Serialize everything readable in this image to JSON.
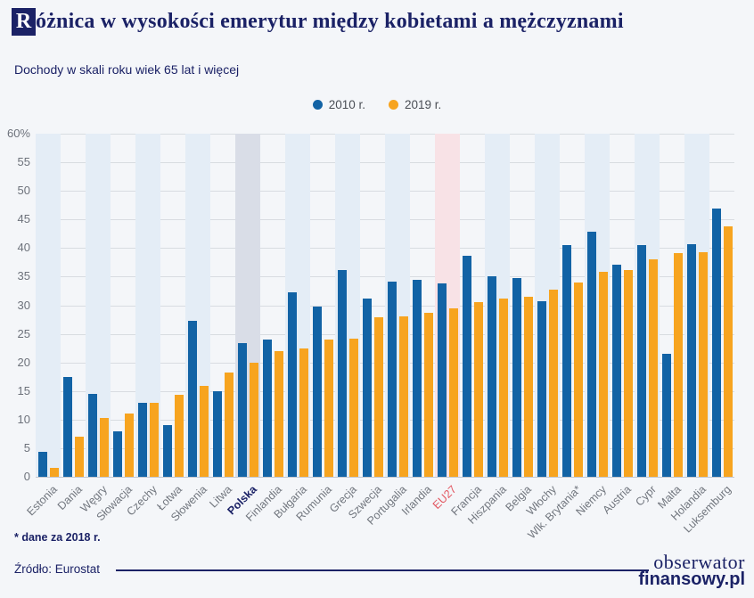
{
  "page": {
    "title_initial": "R",
    "title_rest": "óżnica w wysokości emerytur między kobietami a mężczyznami",
    "subtitle": "Dochody w skali roku wiek 65 lat i więcej",
    "footnote": "* dane za 2018 r.",
    "source": "Źródło: Eurostat",
    "logo_line1": "obserwator",
    "logo_line2": "finansowy.pl"
  },
  "colors": {
    "navy": "#1b2266",
    "bar_2010": "#1263a5",
    "bar_2019": "#f7a41f",
    "band_blue": "#e4edf6",
    "band_grey": "#d9dde7",
    "band_pink": "#f8e2e6",
    "eu27_label": "#e2555f",
    "gridline": "#d8dce1",
    "axis_text": "#6d727b",
    "background": "#f4f6f9"
  },
  "chart_data": {
    "type": "bar",
    "title": "Różnica w wysokości emerytur między kobietami a mężczyznami",
    "subtitle": "Dochody w skali roku wiek 65 lat i więcej",
    "xlabel": "",
    "ylabel": "",
    "ylim": [
      0,
      60
    ],
    "grid": true,
    "legend_position": "top-center",
    "yticks": [
      {
        "value": 60,
        "label": "60%"
      },
      {
        "value": 55,
        "label": "55"
      },
      {
        "value": 50,
        "label": "50"
      },
      {
        "value": 45,
        "label": "45"
      },
      {
        "value": 40,
        "label": "40"
      },
      {
        "value": 35,
        "label": "35"
      },
      {
        "value": 30,
        "label": "30"
      },
      {
        "value": 25,
        "label": "25"
      },
      {
        "value": 20,
        "label": "20"
      },
      {
        "value": 15,
        "label": "15"
      },
      {
        "value": 10,
        "label": "10"
      },
      {
        "value": 5,
        "label": "5"
      },
      {
        "value": 0,
        "label": "0"
      }
    ],
    "categories": [
      {
        "label": "Estonia",
        "band": "blue",
        "label_style": "default"
      },
      {
        "label": "Dania",
        "band": "none",
        "label_style": "default"
      },
      {
        "label": "Węgry",
        "band": "blue",
        "label_style": "default"
      },
      {
        "label": "Słowacja",
        "band": "none",
        "label_style": "default"
      },
      {
        "label": "Czechy",
        "band": "blue",
        "label_style": "default"
      },
      {
        "label": "Łotwa",
        "band": "none",
        "label_style": "default"
      },
      {
        "label": "Słowenia",
        "band": "blue",
        "label_style": "default"
      },
      {
        "label": "Litwa",
        "band": "none",
        "label_style": "default"
      },
      {
        "label": "Polska",
        "band": "grey",
        "label_style": "polska"
      },
      {
        "label": "Finlandia",
        "band": "none",
        "label_style": "default"
      },
      {
        "label": "Bułgaria",
        "band": "blue",
        "label_style": "default"
      },
      {
        "label": "Rumunia",
        "band": "none",
        "label_style": "default"
      },
      {
        "label": "Grecja",
        "band": "blue",
        "label_style": "default"
      },
      {
        "label": "Szwecja",
        "band": "none",
        "label_style": "default"
      },
      {
        "label": "Portugalia",
        "band": "blue",
        "label_style": "default"
      },
      {
        "label": "Irlandia",
        "band": "none",
        "label_style": "default"
      },
      {
        "label": "EU27",
        "band": "pink",
        "label_style": "eu27"
      },
      {
        "label": "Francja",
        "band": "none",
        "label_style": "default"
      },
      {
        "label": "Hiszpania",
        "band": "blue",
        "label_style": "default"
      },
      {
        "label": "Belgia",
        "band": "none",
        "label_style": "default"
      },
      {
        "label": "Włochy",
        "band": "blue",
        "label_style": "default"
      },
      {
        "label": "Wlk. Brytania*",
        "band": "none",
        "label_style": "default"
      },
      {
        "label": "Niemcy",
        "band": "blue",
        "label_style": "default"
      },
      {
        "label": "Austria",
        "band": "none",
        "label_style": "default"
      },
      {
        "label": "Cypr",
        "band": "blue",
        "label_style": "default"
      },
      {
        "label": "Malta",
        "band": "none",
        "label_style": "default"
      },
      {
        "label": "Holandia",
        "band": "blue",
        "label_style": "default"
      },
      {
        "label": "Luksemburg",
        "band": "none",
        "label_style": "default"
      }
    ],
    "series": [
      {
        "name": "2010 r.",
        "color": "#1263a5",
        "values": [
          4.3,
          17.5,
          14.5,
          8.0,
          12.9,
          9.0,
          27.3,
          15.0,
          23.4,
          24.0,
          32.3,
          29.7,
          36.2,
          31.2,
          34.1,
          34.4,
          33.8,
          38.6,
          35.0,
          34.8,
          30.7,
          40.5,
          42.8,
          37.1,
          40.5,
          21.5,
          40.7,
          46.9
        ]
      },
      {
        "name": "2019 r.",
        "color": "#f7a41f",
        "values": [
          1.5,
          7.0,
          10.3,
          11.0,
          13.0,
          14.4,
          15.9,
          18.2,
          19.9,
          22.0,
          22.4,
          24.0,
          24.1,
          27.9,
          28.0,
          28.6,
          29.4,
          30.6,
          31.1,
          31.5,
          32.8,
          33.9,
          35.9,
          36.2,
          38.0,
          39.1,
          39.3,
          43.8
        ]
      }
    ]
  }
}
